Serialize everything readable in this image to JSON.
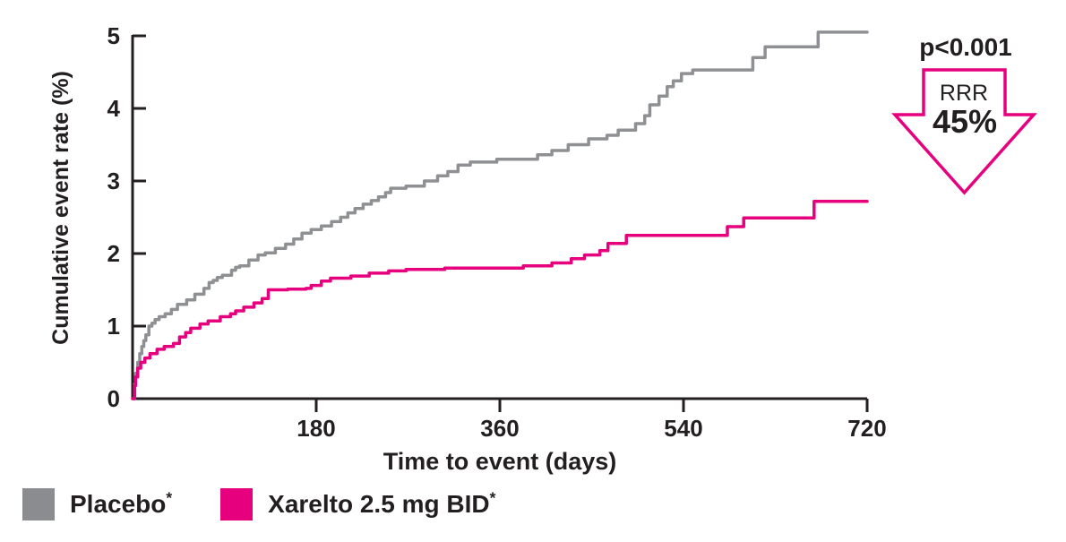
{
  "axes": {
    "x_label": "Time to event (days)",
    "y_label": "Cumulative event rate (%)"
  },
  "annotation": {
    "p_value": "p<0.001",
    "rrr_label": "RRR",
    "rrr_value": "45%"
  },
  "legend": {
    "items": [
      {
        "label": "Placebo",
        "sup": "*",
        "color": "#8b8c8f"
      },
      {
        "label": "Xarelto 2.5 mg BID",
        "sup": "*",
        "color": "#e6007e"
      }
    ]
  },
  "colors": {
    "axis": "#231f20",
    "placebo_line": "#8f9093",
    "xarelto_line": "#e6007e",
    "arrow_outline": "#e6007e"
  },
  "chart_data": {
    "type": "line",
    "subtype": "kaplan-meier-step",
    "title": "",
    "xlabel": "Time to event (days)",
    "ylabel": "Cumulative event rate (%)",
    "xlim": [
      0,
      720
    ],
    "ylim": [
      0,
      5
    ],
    "x_ticks": [
      180,
      360,
      540,
      720
    ],
    "y_ticks": [
      0,
      1,
      2,
      3,
      4,
      5
    ],
    "grid": false,
    "legend_position": "bottom-left",
    "step": "after",
    "series": [
      {
        "name": "Placebo",
        "color": "#8f9093",
        "points": [
          [
            0,
            0
          ],
          [
            2,
            0.2
          ],
          [
            3,
            0.35
          ],
          [
            5,
            0.5
          ],
          [
            7,
            0.62
          ],
          [
            9,
            0.72
          ],
          [
            11,
            0.8
          ],
          [
            13,
            0.88
          ],
          [
            16,
            1.0
          ],
          [
            19,
            1.04
          ],
          [
            22,
            1.09
          ],
          [
            26,
            1.13
          ],
          [
            32,
            1.17
          ],
          [
            38,
            1.23
          ],
          [
            44,
            1.3
          ],
          [
            53,
            1.36
          ],
          [
            61,
            1.44
          ],
          [
            70,
            1.52
          ],
          [
            75,
            1.6
          ],
          [
            79,
            1.63
          ],
          [
            83,
            1.67
          ],
          [
            88,
            1.7
          ],
          [
            97,
            1.77
          ],
          [
            101,
            1.81
          ],
          [
            105,
            1.83
          ],
          [
            114,
            1.91
          ],
          [
            123,
            1.98
          ],
          [
            130,
            2.01
          ],
          [
            140,
            2.07
          ],
          [
            150,
            2.13
          ],
          [
            158,
            2.2
          ],
          [
            166,
            2.28
          ],
          [
            175,
            2.33
          ],
          [
            185,
            2.38
          ],
          [
            195,
            2.44
          ],
          [
            204,
            2.5
          ],
          [
            211,
            2.56
          ],
          [
            218,
            2.62
          ],
          [
            226,
            2.68
          ],
          [
            234,
            2.73
          ],
          [
            241,
            2.78
          ],
          [
            248,
            2.84
          ],
          [
            253,
            2.9
          ],
          [
            268,
            2.93
          ],
          [
            286,
            3.0
          ],
          [
            299,
            3.07
          ],
          [
            309,
            3.13
          ],
          [
            319,
            3.22
          ],
          [
            331,
            3.26
          ],
          [
            357,
            3.3
          ],
          [
            397,
            3.36
          ],
          [
            411,
            3.42
          ],
          [
            427,
            3.5
          ],
          [
            447,
            3.58
          ],
          [
            465,
            3.63
          ],
          [
            476,
            3.7
          ],
          [
            493,
            3.79
          ],
          [
            502,
            3.9
          ],
          [
            507,
            4.05
          ],
          [
            516,
            4.17
          ],
          [
            524,
            4.3
          ],
          [
            530,
            4.38
          ],
          [
            538,
            4.48
          ],
          [
            549,
            4.53
          ],
          [
            608,
            4.7
          ],
          [
            620,
            4.85
          ],
          [
            672,
            5.05
          ],
          [
            720,
            5.05
          ]
        ]
      },
      {
        "name": "Xarelto 2.5 mg BID",
        "color": "#e6007e",
        "points": [
          [
            0,
            0
          ],
          [
            2,
            0.18
          ],
          [
            3,
            0.3
          ],
          [
            5,
            0.42
          ],
          [
            8,
            0.5
          ],
          [
            12,
            0.56
          ],
          [
            17,
            0.62
          ],
          [
            24,
            0.68
          ],
          [
            31,
            0.72
          ],
          [
            40,
            0.76
          ],
          [
            46,
            0.85
          ],
          [
            52,
            0.91
          ],
          [
            57,
            0.97
          ],
          [
            66,
            1.03
          ],
          [
            74,
            1.07
          ],
          [
            86,
            1.13
          ],
          [
            96,
            1.17
          ],
          [
            101,
            1.21
          ],
          [
            109,
            1.26
          ],
          [
            119,
            1.32
          ],
          [
            127,
            1.38
          ],
          [
            133,
            1.5
          ],
          [
            152,
            1.51
          ],
          [
            170,
            1.52
          ],
          [
            175,
            1.56
          ],
          [
            185,
            1.62
          ],
          [
            194,
            1.66
          ],
          [
            214,
            1.69
          ],
          [
            232,
            1.73
          ],
          [
            251,
            1.76
          ],
          [
            268,
            1.78
          ],
          [
            306,
            1.8
          ],
          [
            383,
            1.83
          ],
          [
            411,
            1.87
          ],
          [
            430,
            1.93
          ],
          [
            443,
            1.98
          ],
          [
            458,
            2.04
          ],
          [
            466,
            2.14
          ],
          [
            484,
            2.25
          ],
          [
            583,
            2.37
          ],
          [
            599,
            2.49
          ],
          [
            668,
            2.72
          ],
          [
            720,
            2.72
          ]
        ]
      }
    ],
    "annotations": [
      {
        "text": "p<0.001",
        "style": "bold"
      },
      {
        "text": "RRR",
        "style": "inside-arrow"
      },
      {
        "text": "45%",
        "style": "inside-arrow-bold"
      }
    ]
  }
}
